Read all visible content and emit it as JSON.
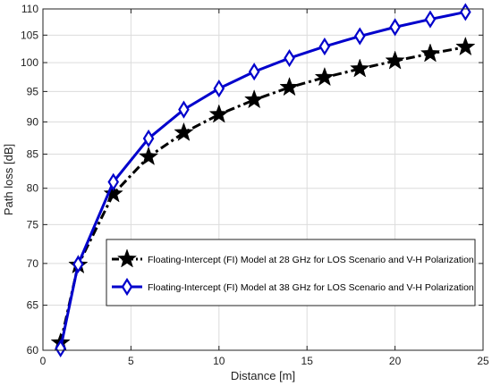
{
  "chart_data": {
    "type": "line",
    "title": "",
    "xlabel": "Distance [m]",
    "ylabel": "Path loss [dB]",
    "xlim": [
      0,
      25
    ],
    "ylim": [
      60,
      110
    ],
    "x_scale": "linear",
    "y_scale": "log",
    "grid": true,
    "legend_position": "lower-right",
    "x_ticks": [
      0,
      5,
      10,
      15,
      20,
      25
    ],
    "y_ticks": [
      60,
      65,
      70,
      75,
      80,
      85,
      90,
      95,
      100,
      105,
      110
    ],
    "series": [
      {
        "name": "Floating-Intercept (FI) Model at 28 GHz for LOS Scenario and V-H Polarization",
        "color": "#000000",
        "line_style": "dash-dot",
        "marker": "star",
        "x": [
          1,
          2,
          4,
          6,
          8,
          10,
          12,
          14,
          16,
          18,
          20,
          22,
          24
        ],
        "y": [
          60.8,
          69.8,
          79.2,
          84.6,
          88.3,
          91.2,
          93.6,
          95.7,
          97.4,
          98.9,
          100.3,
          101.6,
          102.8
        ]
      },
      {
        "name": "Floating-Intercept (FI) Model at 38 GHz for LOS Scenario and V-H Polarization",
        "color": "#0000cc",
        "line_style": "solid",
        "marker": "diamond",
        "x": [
          1,
          2,
          4,
          6,
          8,
          10,
          12,
          14,
          16,
          18,
          20,
          22,
          24
        ],
        "y": [
          60.2,
          69.9,
          80.9,
          87.4,
          92.0,
          95.5,
          98.4,
          100.8,
          102.9,
          104.8,
          106.5,
          108.0,
          109.4
        ]
      }
    ]
  }
}
